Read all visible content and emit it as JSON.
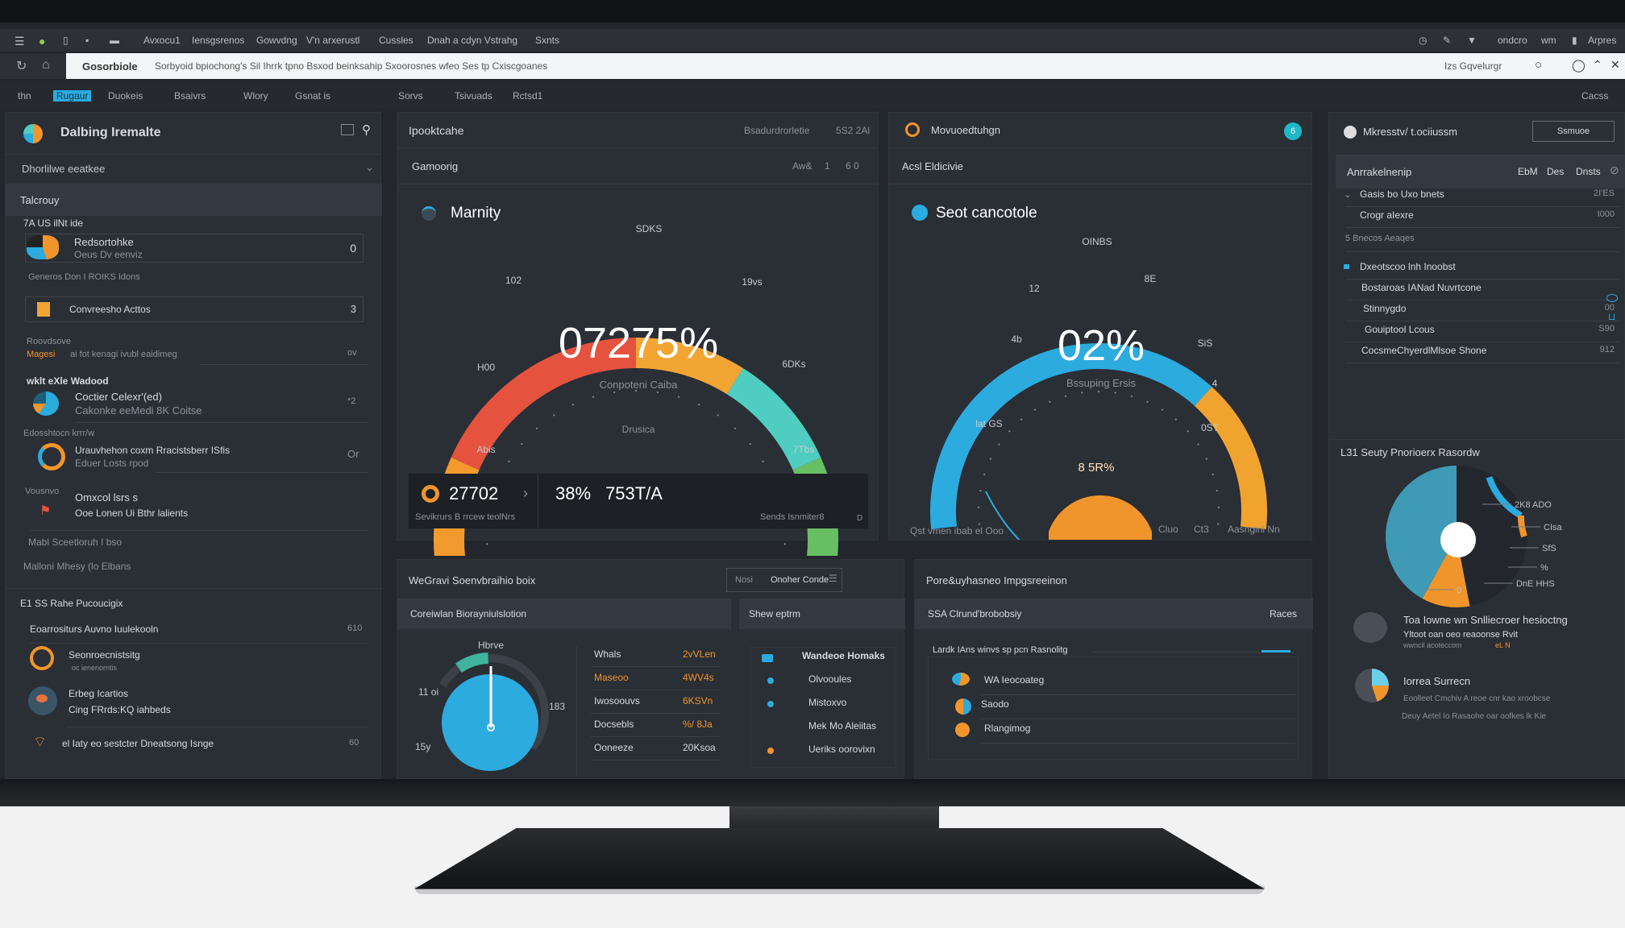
{
  "menubar": {
    "items": [
      "Avxocu1",
      "Iensgsrenos",
      "Gowvdng",
      "V'n arxerustl",
      "Cussles",
      "Dnah a cdyn Vstrahg",
      "Sxnts"
    ],
    "right": [
      "ondcro",
      "wm",
      "Arpres"
    ]
  },
  "address": {
    "title": "Gosorbiole",
    "path": "Sorbyoid bpiochong's  Sil Ihrrk tpno  Bsxod beinksahip  Sxoorosnes wfeo  Ses tp Cxiscgoanes",
    "right": "Izs  Gqvelurgr"
  },
  "tabs": {
    "items": [
      "thn",
      "Rugaur",
      "Duokeis",
      "Bsaivrs",
      "Wlory",
      "Gsnat is",
      "Sorvs",
      "Tsivuads",
      "Rctsd1"
    ],
    "active": 1,
    "right": "Cacss"
  },
  "left": {
    "title": "Dalbing Iremalte",
    "filter": "Dhorlilwe eeatkee",
    "section": "Talcrouy",
    "group": "7A US ilNt ide",
    "items": [
      {
        "title": "Redsortohke",
        "sub": "Oeus Dv eenviz",
        "value": "0"
      },
      {
        "note": "Generos Don I ROIKS Idons"
      },
      {
        "title": "Convreesho Acttos",
        "value": "3"
      },
      {
        "label": "Roovdsove",
        "tag": "Magesi",
        "text": "ai fot kenagi ivubl eaidimeg",
        "value": "ov"
      },
      {
        "label": "wklt eXle Wadood",
        "title": "Coctier Celexr'(ed)",
        "sub": "Cakonke eeMedi 8K Coitse",
        "value": "*2"
      },
      {
        "label": "Edosshtocn krrr/w",
        "title": "Urauvhehon coxm Rracistsberr ISfis",
        "sub": "Eduer Losts rpod",
        "value": "Or"
      },
      {
        "label": "Vousnvo",
        "title": "Omxcol lsrs s",
        "sub": "Ooe Lonen Ui Bthr lalients"
      },
      {
        "note": "Mabl Sceetloruh I bso"
      },
      {
        "note": "Malloni Mhesy (lo Elbans"
      }
    ],
    "section2": "E1 SS Rahe Pucoucigix",
    "items2": [
      {
        "title": "Eoarrositurs Auvno Iuulekooln",
        "value": "610"
      },
      {
        "title": "Seonroecnistsitg",
        "sub": "oc ienenorntis"
      },
      {
        "title": "Erbeg Icartios",
        "sub": "Cing FRrds:KQ iahbeds"
      },
      {
        "title": "el Iaty eo sestcter Dneatsong Isnge",
        "value": "60"
      }
    ]
  },
  "gauge1": {
    "panel_title": "Ipooktcahe",
    "panel_right": [
      "Bsadurdrorletie",
      "5S2 2Al"
    ],
    "sub_title": "Gamoorig",
    "sub_right": [
      "Aw&",
      "1",
      "6 0"
    ],
    "title": "Marnity",
    "value": "07275%",
    "caption": "Conpoteni Caiba",
    "bottom_caption": "Drusica",
    "ticks": [
      "Abis",
      "H00",
      "102",
      "SDKS",
      "19vs",
      "6DKs",
      "7Tbs"
    ],
    "segments": [
      {
        "color": "#f29a2e",
        "from": 0,
        "to": 0.17
      },
      {
        "color": "#e5533f",
        "from": 0.17,
        "to": 0.5
      },
      {
        "color": "#f3a533",
        "from": 0.5,
        "to": 0.66
      },
      {
        "color": "#4ecdc0",
        "from": 0.66,
        "to": 0.83
      },
      {
        "color": "#68bf63",
        "from": 0.83,
        "to": 1
      }
    ],
    "stats": {
      "value1": "27702",
      "value2": "38%",
      "value3": "753T/A",
      "caption1": "Sevikrurs B rrcew teolNrs",
      "caption2": "Sends Isnmiter8",
      "page": "D"
    }
  },
  "gauge2": {
    "panel_title": "Movuoedtuhgn",
    "badge": "6",
    "sub_title": "Acsl Eldicivie",
    "title": "Seot cancotole",
    "value": "02%",
    "caption": "Bssuping Ersis",
    "ticks": [
      "lat GS",
      "4b",
      "12",
      "OINBS",
      "8E",
      "SiS",
      "4",
      "0ST"
    ],
    "segments": [
      {
        "color": "#2cabdf",
        "from": 0,
        "to": 0.72
      },
      {
        "color": "#f1a32f",
        "from": 0.72,
        "to": 1
      }
    ],
    "knob_value": "8 5R%",
    "footer_left": "Qst vmen ibab el Ooo",
    "footer_right": [
      "Cluo",
      "Ct3",
      "Aasngirll Nn"
    ]
  },
  "right": {
    "title": "Mkresstv/ t.ociiussm",
    "button": "Ssmuoe",
    "header": "Anrrakelnenip",
    "header_cols": [
      "EbM",
      "Des",
      "Dnsts"
    ],
    "rows": [
      {
        "label": "Gasis bo Uxo bnets",
        "value": "2I'ES"
      },
      {
        "label": "Crogr aIexre",
        "value": "I000"
      },
      {
        "label": "5 Bnecos Aeaqes",
        "value": ""
      },
      {
        "label": "Dxeotscoo lnh Inoobst",
        "value": ""
      },
      {
        "label": "Bostaroas IANad Nuvrtcone",
        "value": ""
      },
      {
        "label": "Stinnygdo",
        "value": "00"
      },
      {
        "label": "Gouiptool Lcous",
        "value": "S90"
      },
      {
        "label": "CocsmeChyerdlMlsoe Shone",
        "value": "912"
      }
    ],
    "chart_title": "L31 Seuty Pnorioerx Rasordw",
    "donut_labels": [
      "2K8 ADO",
      "CIsa",
      "SfS",
      "%",
      "DnE HHS",
      "0"
    ],
    "donut": [
      {
        "color": "#3f9bb5",
        "value": 42
      },
      {
        "color": "#f0952b",
        "value": 11
      },
      {
        "color": "#2a2e35",
        "value": 30
      },
      {
        "color": "#2cabdf",
        "value": 12
      },
      {
        "color": "#f0952b",
        "value": 5
      }
    ],
    "feed": [
      {
        "title": "Toa Iowne wn Snlliecroer hesioctng",
        "line1": "Yltoot oan oeo reaoonse Rvit",
        "line2": "wwncil acoteccom",
        "tag": "eL N"
      },
      {
        "title": "Iorrea Surrecn",
        "line1": "Eoolleet Cmchiv A reoe cnr kao xroobcse",
        "line2": "Deuy Aetel Io Rasaohe oar oofkes lk Kie"
      }
    ]
  },
  "bottom": {
    "title": "WeGravi Soenvbraihio boix",
    "select_label": "Nosi",
    "select_value": "Onoher Conde",
    "sub_title": "Coreiwlan Biorayniulslotion",
    "sub_title2": "Shew eptrm",
    "pie_labels": [
      "Hbrve",
      "11 oi",
      "183",
      "15y"
    ],
    "pie_value": 0.08,
    "table": [
      {
        "k": "Whals",
        "v": "2vVLen"
      },
      {
        "k": "Maseoo",
        "v": "4WV4s"
      },
      {
        "k": "Iwosoouvs",
        "v": "6KSVn"
      },
      {
        "k": "Docsebls",
        "v": "%/ 8Ja"
      },
      {
        "k": "Ooneeze",
        "v": "20Ksoa"
      }
    ],
    "list": [
      "Wandeoe Homaks",
      "Olvooules",
      "Mistoxvo",
      "Mek Mo Aleiitas",
      "Ueriks oorovixn"
    ]
  },
  "bottom_right": {
    "title": "Pore&uyhasneo Impgsreeinon",
    "sub_title": "SSA Clrund'brobobsiy",
    "sub_right": "Races",
    "list_title": "Lardk IAns winvs sp pcn Rasnolitg",
    "items": [
      "WA Ieocoateg",
      "Saodo",
      "Rlangimog"
    ]
  },
  "colors": {
    "accent_blue": "#2cabdf",
    "accent_orange": "#f0952b",
    "red": "#e5533f",
    "teal": "#4ecdc0",
    "green": "#68bf63",
    "panel": "#2a2e35"
  }
}
